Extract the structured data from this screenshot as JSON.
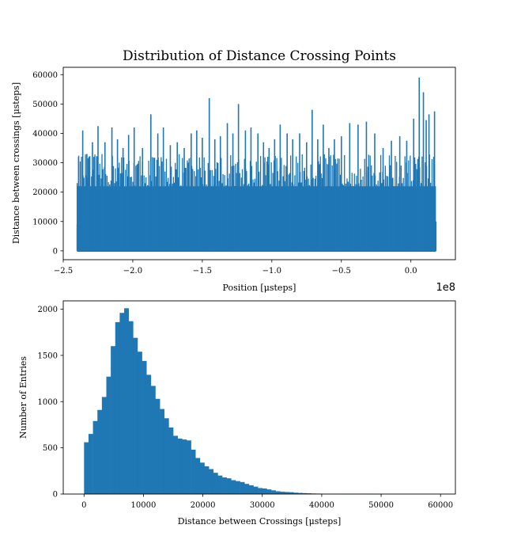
{
  "chart_data": [
    {
      "type": "line",
      "title": "Distribution of Distance Crossing Points",
      "xlabel": "Position [μsteps]",
      "ylabel": "Distance between crossings [μsteps]",
      "x_offset_label": "1e8",
      "xlim": [
        -2.5,
        0.32
      ],
      "ylim": [
        -3000,
        62500
      ],
      "xticks": [
        -2.5,
        -2.0,
        -1.5,
        -1.0,
        -0.5,
        0.0
      ],
      "xtick_labels": [
        "−2.5",
        "−2.0",
        "−1.5",
        "−1.0",
        "−0.5",
        "0.0"
      ],
      "yticks": [
        0,
        10000,
        20000,
        30000,
        40000,
        50000,
        60000
      ],
      "ytick_labels": [
        "0",
        "10000",
        "20000",
        "30000",
        "40000",
        "50000",
        "60000"
      ],
      "series_color": "#1f77b4",
      "x_range": [
        -2.4,
        0.18
      ],
      "spikes": [
        [
          -2.39,
          32000
        ],
        [
          -2.36,
          41000
        ],
        [
          -2.33,
          33000
        ],
        [
          -2.29,
          37000
        ],
        [
          -2.25,
          42500
        ],
        [
          -2.2,
          37000
        ],
        [
          -2.15,
          42000
        ],
        [
          -2.11,
          38000
        ],
        [
          -2.07,
          35000
        ],
        [
          -2.03,
          39500
        ],
        [
          -1.99,
          42000
        ],
        [
          -1.93,
          35000
        ],
        [
          -1.87,
          46500
        ],
        [
          -1.82,
          40000
        ],
        [
          -1.78,
          42000
        ],
        [
          -1.73,
          36000
        ],
        [
          -1.68,
          37000
        ],
        [
          -1.63,
          35000
        ],
        [
          -1.58,
          40000
        ],
        [
          -1.54,
          41000
        ],
        [
          -1.5,
          38500
        ],
        [
          -1.45,
          52000
        ],
        [
          -1.41,
          38000
        ],
        [
          -1.37,
          39000
        ],
        [
          -1.32,
          43500
        ],
        [
          -1.28,
          40000
        ],
        [
          -1.24,
          50000
        ],
        [
          -1.19,
          41000
        ],
        [
          -1.15,
          42000
        ],
        [
          -1.1,
          40000
        ],
        [
          -1.06,
          37000
        ],
        [
          -1.02,
          35000
        ],
        [
          -0.98,
          38000
        ],
        [
          -0.94,
          43000
        ],
        [
          -0.89,
          40000
        ],
        [
          -0.85,
          38000
        ],
        [
          -0.8,
          40000
        ],
        [
          -0.75,
          37000
        ],
        [
          -0.71,
          48000
        ],
        [
          -0.67,
          38000
        ],
        [
          -0.63,
          43000
        ],
        [
          -0.59,
          35000
        ],
        [
          -0.55,
          38000
        ],
        [
          -0.5,
          39000
        ],
        [
          -0.44,
          43500
        ],
        [
          -0.38,
          43000
        ],
        [
          -0.32,
          44000
        ],
        [
          -0.26,
          40000
        ],
        [
          -0.2,
          35000
        ],
        [
          -0.14,
          37500
        ],
        [
          -0.08,
          39000
        ],
        [
          -0.03,
          37500
        ],
        [
          0.02,
          45000
        ],
        [
          0.06,
          59000
        ],
        [
          0.09,
          54000
        ],
        [
          0.11,
          44500
        ],
        [
          0.13,
          46500
        ],
        [
          0.17,
          47500
        ]
      ],
      "floor_band": [
        0,
        22000
      ]
    },
    {
      "type": "bar",
      "xlabel": "Distance between Crossings [μsteps]",
      "ylabel": "Number of Entries",
      "xlim": [
        -3500,
        62500
      ],
      "ylim": [
        0,
        2090
      ],
      "xticks": [
        0,
        10000,
        20000,
        30000,
        40000,
        50000,
        60000
      ],
      "xtick_labels": [
        "0",
        "10000",
        "20000",
        "30000",
        "40000",
        "50000",
        "60000"
      ],
      "yticks": [
        0,
        500,
        1000,
        1500,
        2000
      ],
      "ytick_labels": [
        "0",
        "500",
        "1000",
        "1500",
        "2000"
      ],
      "bar_color": "#1f77b4",
      "bin_start": 0,
      "bin_width": 750,
      "values": [
        560,
        650,
        790,
        910,
        1050,
        1270,
        1600,
        1860,
        1960,
        2010,
        1870,
        1690,
        1540,
        1440,
        1290,
        1170,
        1030,
        920,
        820,
        720,
        630,
        600,
        590,
        580,
        480,
        390,
        340,
        300,
        270,
        230,
        200,
        180,
        170,
        150,
        140,
        130,
        110,
        95,
        80,
        65,
        60,
        50,
        40,
        30,
        25,
        22,
        20,
        15,
        12,
        10,
        8,
        6,
        5,
        4,
        3,
        2,
        3,
        2,
        1,
        1,
        2,
        1,
        4,
        2,
        1,
        1,
        1,
        0,
        0,
        0,
        0,
        0,
        0,
        0,
        0,
        0,
        0,
        0,
        0
      ]
    }
  ]
}
